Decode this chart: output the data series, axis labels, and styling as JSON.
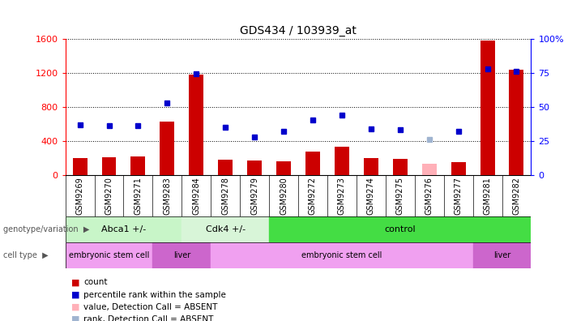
{
  "title": "GDS434 / 103939_at",
  "samples": [
    "GSM9269",
    "GSM9270",
    "GSM9271",
    "GSM9283",
    "GSM9284",
    "GSM9278",
    "GSM9279",
    "GSM9280",
    "GSM9272",
    "GSM9273",
    "GSM9274",
    "GSM9275",
    "GSM9276",
    "GSM9277",
    "GSM9281",
    "GSM9282"
  ],
  "counts": [
    200,
    210,
    215,
    630,
    1180,
    175,
    165,
    160,
    275,
    330,
    200,
    185,
    0,
    150,
    1580,
    1230
  ],
  "absent_count": [
    null,
    null,
    null,
    null,
    null,
    null,
    null,
    null,
    null,
    null,
    null,
    null,
    130,
    null,
    null,
    null
  ],
  "ranks": [
    37,
    36,
    36,
    53,
    74,
    35,
    28,
    32,
    40,
    44,
    34,
    33,
    null,
    32,
    78,
    76
  ],
  "absent_rank": [
    null,
    null,
    null,
    null,
    null,
    null,
    null,
    null,
    null,
    null,
    null,
    null,
    26,
    null,
    null,
    null
  ],
  "geno_spans": [
    {
      "label": "Abca1 +/-",
      "start": 0,
      "end": 4,
      "color": "#c8f5c8"
    },
    {
      "label": "Cdk4 +/-",
      "start": 4,
      "end": 7,
      "color": "#d8f5d8"
    },
    {
      "label": "control",
      "start": 7,
      "end": 16,
      "color": "#44dd44"
    }
  ],
  "cell_spans": [
    {
      "label": "embryonic stem cell",
      "start": 0,
      "end": 3,
      "color": "#f0a0f0"
    },
    {
      "label": "liver",
      "start": 3,
      "end": 5,
      "color": "#cc66cc"
    },
    {
      "label": "embryonic stem cell",
      "start": 5,
      "end": 14,
      "color": "#f0a0f0"
    },
    {
      "label": "liver",
      "start": 14,
      "end": 16,
      "color": "#cc66cc"
    }
  ],
  "ylim_left": [
    0,
    1600
  ],
  "ylim_right": [
    0,
    100
  ],
  "yticks_left": [
    0,
    400,
    800,
    1200,
    1600
  ],
  "yticks_right": [
    0,
    25,
    50,
    75,
    100
  ],
  "bar_color_red": "#CC0000",
  "bar_color_absent": "#ffb0b8",
  "dot_color_blue": "#0000CC",
  "dot_color_absent": "#a0b4d0",
  "plot_bg_color": "#ffffff",
  "label_bg_color": "#d8d8d8"
}
